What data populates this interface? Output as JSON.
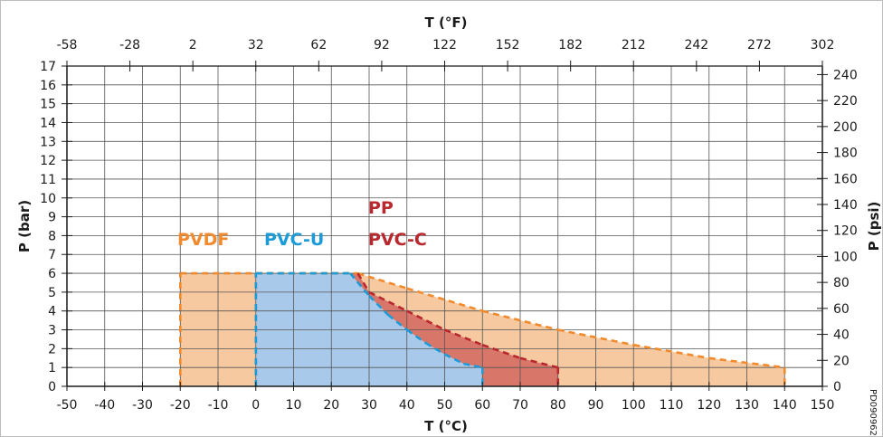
{
  "chart_data": {
    "type": "area",
    "x_bottom": {
      "label": "T (°C)",
      "range": [
        -50,
        150
      ],
      "ticks": [
        -50,
        -40,
        -30,
        -20,
        -10,
        0,
        10,
        20,
        30,
        40,
        50,
        60,
        70,
        80,
        90,
        100,
        110,
        120,
        130,
        140,
        150
      ]
    },
    "x_top": {
      "label": "T (°F)",
      "ticks": [
        -58,
        -28,
        2,
        32,
        62,
        92,
        122,
        152,
        182,
        212,
        242,
        272,
        302
      ]
    },
    "y_left": {
      "label": "P (bar)",
      "range": [
        0,
        17
      ],
      "ticks": [
        0,
        1,
        2,
        3,
        4,
        5,
        6,
        7,
        8,
        9,
        10,
        11,
        12,
        13,
        14,
        15,
        16,
        17
      ]
    },
    "y_right": {
      "label": "P (psi)",
      "ticks": [
        0,
        20,
        40,
        60,
        80,
        100,
        120,
        140,
        160,
        180,
        200,
        220,
        240
      ]
    },
    "grid": true,
    "series": [
      {
        "name": "PVDF",
        "color": "#f08a2c",
        "fill": "#f7c9a0",
        "points": [
          [
            -20,
            0
          ],
          [
            -20,
            6
          ],
          [
            27,
            6
          ],
          [
            40,
            5.2
          ],
          [
            60,
            4.0
          ],
          [
            80,
            3.0
          ],
          [
            100,
            2.2
          ],
          [
            120,
            1.5
          ],
          [
            140,
            1.0
          ],
          [
            140,
            0
          ]
        ]
      },
      {
        "name": "PP / PVC-C",
        "label_lines": [
          "PP",
          "PVC-C"
        ],
        "color": "#b8282e",
        "fill": "#d9766a",
        "points": [
          [
            27,
            6
          ],
          [
            30,
            5.0
          ],
          [
            40,
            4.0
          ],
          [
            50,
            3.0
          ],
          [
            60,
            2.2
          ],
          [
            70,
            1.5
          ],
          [
            80,
            1.0
          ],
          [
            80,
            0
          ],
          [
            0,
            0
          ],
          [
            0,
            6
          ]
        ]
      },
      {
        "name": "PVC-U",
        "color": "#1b9bd7",
        "fill": "#a9c9ea",
        "points": [
          [
            0,
            0
          ],
          [
            0,
            6
          ],
          [
            25,
            6
          ],
          [
            30,
            4.8
          ],
          [
            35,
            3.8
          ],
          [
            40,
            3.0
          ],
          [
            45,
            2.3
          ],
          [
            50,
            1.7
          ],
          [
            55,
            1.2
          ],
          [
            60,
            1.0
          ],
          [
            60,
            0
          ]
        ]
      }
    ],
    "annotation": "PD090962",
    "colors": {
      "grid": "#555555",
      "axis": "#1a1a1a",
      "border": "#bdbdbd"
    }
  }
}
